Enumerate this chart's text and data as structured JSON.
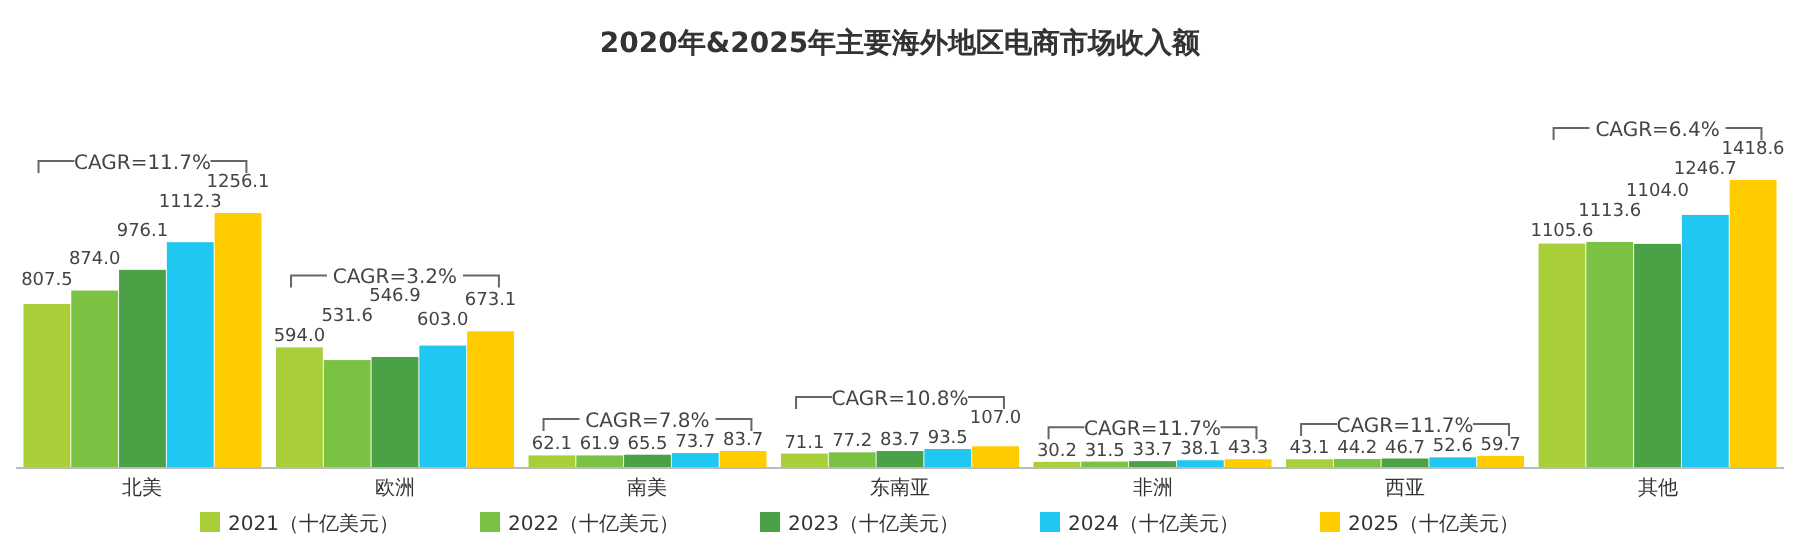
{
  "chart_data": {
    "type": "bar",
    "title": "2020年&2025年主要海外地区电商市场收入额",
    "categories": [
      "北美",
      "欧洲",
      "南美",
      "东南亚",
      "非洲",
      "西亚",
      "其他"
    ],
    "series": [
      {
        "name": "2021（十亿美元）",
        "color": "#a9cf38",
        "values": [
          807.5,
          594.0,
          62.1,
          71.1,
          30.2,
          43.1,
          1105.6
        ],
        "value_labels": [
          "807.5",
          "594.0",
          "62.1",
          "71.1",
          "30.2",
          "43.1",
          "1105.6"
        ]
      },
      {
        "name": "2022（十亿美元）",
        "color": "#7cc242",
        "values": [
          874.0,
          531.6,
          61.9,
          77.2,
          31.5,
          44.2,
          1113.6
        ],
        "value_labels": [
          "874.0",
          "531.6",
          "61.9",
          "77.2",
          "31.5",
          "44.2",
          "1113.6"
        ]
      },
      {
        "name": "2023（十亿美元）",
        "color": "#4aa146",
        "values": [
          976.1,
          546.9,
          65.5,
          83.7,
          33.7,
          46.7,
          1104.0
        ],
        "value_labels": [
          "976.1",
          "546.9",
          "65.5",
          "83.7",
          "33.7",
          "46.7",
          "1104.0"
        ]
      },
      {
        "name": "2024（十亿美元）",
        "color": "#20c7f0",
        "values": [
          1112.3,
          603.0,
          73.7,
          93.5,
          38.1,
          52.6,
          1246.7
        ],
        "value_labels": [
          "1112.3",
          "603.0",
          "73.7",
          "93.5",
          "38.1",
          "52.6",
          "1246.7"
        ]
      },
      {
        "name": "2025（十亿美元）",
        "color": "#ffcc00",
        "values": [
          1256.1,
          673.1,
          83.7,
          107.0,
          43.3,
          59.7,
          1418.6
        ],
        "value_labels": [
          "1256.1",
          "673.1",
          "83.7",
          "107.0",
          "43.3",
          "59.7",
          "1418.6"
        ]
      }
    ],
    "legend": "bottom",
    "annotations": [
      "CAGR=11.7%",
      "CAGR=3.2%",
      "CAGR=7.8%",
      "CAGR=10.8%",
      "CAGR=11.7%",
      "CAGR=11.7%",
      "CAGR=6.4%"
    ]
  }
}
